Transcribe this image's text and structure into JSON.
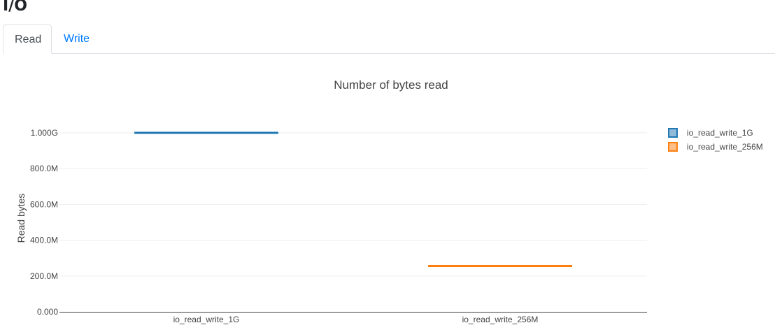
{
  "page_title": "I/O",
  "tabs": [
    {
      "label": "Read",
      "active": true
    },
    {
      "label": "Write",
      "active": false
    }
  ],
  "chart_data": {
    "type": "box",
    "title": "Number of bytes read",
    "xlabel": "",
    "ylabel": "Read bytes",
    "categories": [
      "io_read_write_1G",
      "io_read_write_256M"
    ],
    "series": [
      {
        "name": "io_read_write_1G",
        "category": "io_read_write_1G",
        "values": [
          1000000000
        ],
        "color": "#1f77b4"
      },
      {
        "name": "io_read_write_256M",
        "category": "io_read_write_256M",
        "values": [
          256000000
        ],
        "color": "#ff7f0e"
      }
    ],
    "ylim": [
      0,
      1000000000
    ],
    "yticks": [
      0,
      200000000,
      400000000,
      600000000,
      800000000,
      1000000000
    ],
    "ytick_labels": [
      "0.000",
      "200.0M",
      "400.0M",
      "600.0M",
      "800.0M",
      "1.000G"
    ],
    "grid": true,
    "legend": "right"
  }
}
